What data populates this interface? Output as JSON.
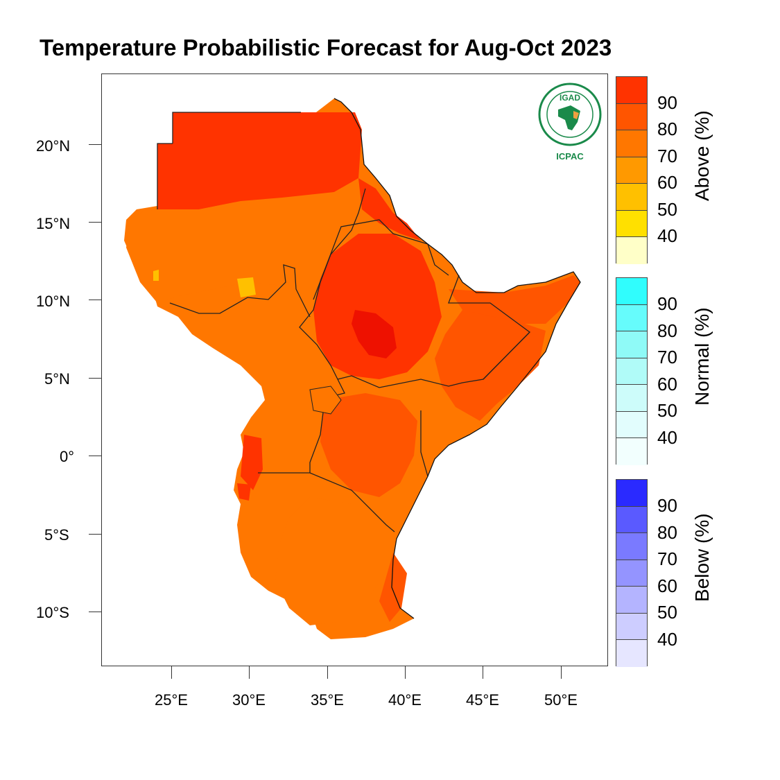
{
  "title": "Temperature Probabilistic Forecast for Aug-Oct 2023",
  "lat_labels": [
    "20°N",
    "15°N",
    "10°N",
    "5°N",
    "0°",
    "5°S",
    "10°S"
  ],
  "lon_labels": [
    "25°E",
    "30°E",
    "35°E",
    "40°E",
    "45°E",
    "50°E"
  ],
  "legend": {
    "above": {
      "title": "Above (%)",
      "ticks": [
        "90",
        "80",
        "70",
        "60",
        "50",
        "40"
      ],
      "colors": [
        "#ff3300",
        "#ff5500",
        "#ff7700",
        "#ff9900",
        "#ffc000",
        "#ffe000",
        "#ffffc8"
      ]
    },
    "normal": {
      "title": "Normal (%)",
      "ticks": [
        "90",
        "80",
        "70",
        "60",
        "50",
        "40"
      ],
      "colors": [
        "#30fdfd",
        "#66fcfc",
        "#8ffaf7",
        "#b0fbf8",
        "#cdfcfa",
        "#e2fdfd",
        "#f2fffe"
      ]
    },
    "below": {
      "title": "Below (%)",
      "ticks": [
        "90",
        "80",
        "70",
        "60",
        "50",
        "40"
      ],
      "colors": [
        "#2a2aff",
        "#5a5aff",
        "#7a7aff",
        "#9494ff",
        "#b4b4ff",
        "#cdcdff",
        "#e6e6ff"
      ]
    }
  },
  "logo": {
    "top_text": "IGAD",
    "bottom_text": "ICPAC"
  },
  "map_colors": {
    "above_90": "#ff3300",
    "above_80": "#ff5500",
    "above_70": "#ff7700",
    "above_60": "#ff9900",
    "above_50": "#ffc000",
    "above_40": "#ffe000",
    "peak": "#ee1100"
  }
}
